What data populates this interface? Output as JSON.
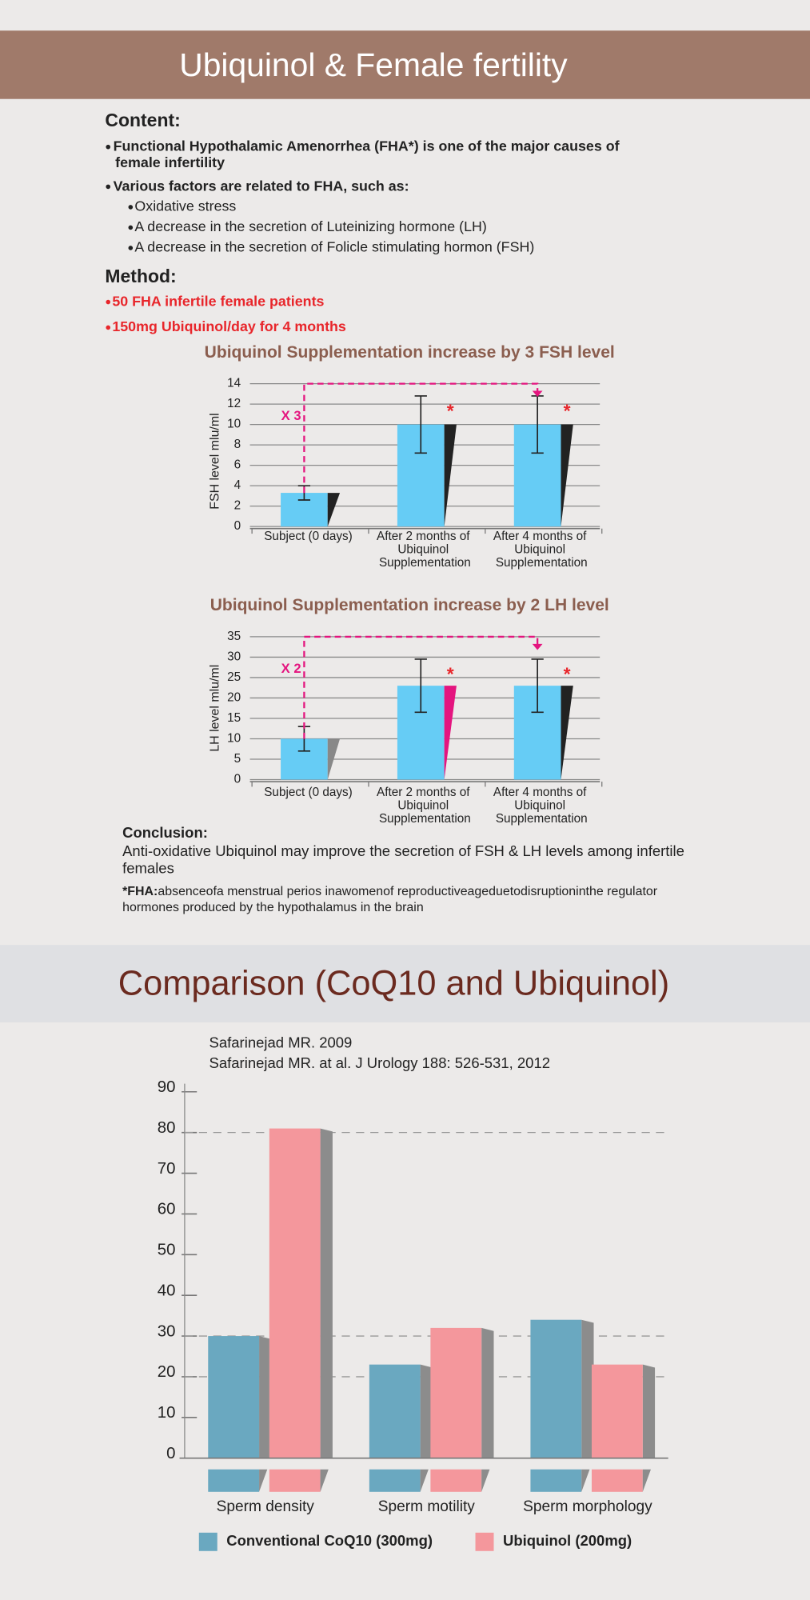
{
  "header": {
    "title": "Ubiquinol & Female fertility"
  },
  "content": {
    "heading": "Content:",
    "points": [
      {
        "text": "Functional Hypothalamic Amenorrhea (FHA*) is one of the major causes of female infertility"
      },
      {
        "text": "Various factors are related to FHA, such as:",
        "subpoints": [
          "Oxidative stress",
          "A decrease in the secretion of Luteinizing hormone (LH)",
          "A decrease in the secretion of Folicle stimulating hormon (FSH)"
        ]
      }
    ]
  },
  "method": {
    "heading": "Method:",
    "points": [
      "50 FHA infertile female patients",
      "150mg Ubiquinol/day for 4 months"
    ]
  },
  "conclusion": {
    "heading": "Conclusion:",
    "text": "Anti-oxidative Ubiquinol may improve the secretion of FSH & LH levels among infertile females",
    "footnote_term": "*FHA:",
    "footnote": "absenceofa menstrual perios inawomenof reproductiveageduetodisruptioninthe regulator hormones produced by the hypothalamus in the brain"
  },
  "comparison": {
    "title": "Comparison (CoQ10 and Ubiquinol)",
    "sources": [
      "Safarinejad MR. 2009",
      "Safarinejad MR. at al. J Urology 188: 526-531, 2012"
    ]
  },
  "chart_data": [
    {
      "type": "bar",
      "title": "Ubiquinol Supplementation increase by 3 FSH level",
      "y_label": "FSH level mlu/ml",
      "categories": [
        "Subject (0 days)",
        "After 2 months of Ubiquinol Supplementation",
        "After 4 months of Ubiquinol Supplementation"
      ],
      "values": [
        3.3,
        10,
        10
      ],
      "errors": [
        0.7,
        2.8,
        2.8
      ],
      "color": "#66ccf5",
      "shadow_colors": [
        "#222222",
        "#222222",
        "#222222"
      ],
      "ylim": [
        0,
        14
      ],
      "yticks": [
        0,
        2,
        4,
        6,
        8,
        10,
        12,
        14
      ],
      "grid": true,
      "annotation": "X 3",
      "significance_marker": "*",
      "significant": [
        false,
        true,
        true
      ]
    },
    {
      "type": "bar",
      "title": "Ubiquinol Supplementation increase by 2 LH level",
      "y_label": "LH level mlu/ml",
      "categories": [
        "Subject (0 days)",
        "After 2 months of Ubiquinol Supplementation",
        "After 4 months of Ubiquinol Supplementation"
      ],
      "values": [
        10,
        23,
        23
      ],
      "errors": [
        3,
        6.5,
        6.5
      ],
      "color": "#66ccf5",
      "shadow_colors": [
        "#888888",
        "#e4157f",
        "#222222"
      ],
      "ylim": [
        0,
        35
      ],
      "yticks": [
        0,
        5,
        10,
        15,
        20,
        25,
        30,
        35
      ],
      "grid": true,
      "annotation": "X 2",
      "significance_marker": "*",
      "significant": [
        false,
        true,
        true
      ]
    },
    {
      "type": "bar",
      "categories": [
        "Sperm density",
        "Sperm motility",
        "Sperm morphology"
      ],
      "series": [
        {
          "name": "Conventional CoQ10 (300mg)",
          "color": "#6aa8c0",
          "values": [
            30,
            23,
            34
          ]
        },
        {
          "name": "Ubiquinol (200mg)",
          "color": "#f4979c",
          "values": [
            81,
            32,
            23
          ]
        }
      ],
      "ylim": [
        0,
        90
      ],
      "yticks": [
        0,
        10,
        20,
        30,
        40,
        50,
        60,
        70,
        80,
        90
      ],
      "grid": false,
      "reference_lines": [
        80,
        30,
        20
      ],
      "legend": "bottom"
    }
  ]
}
